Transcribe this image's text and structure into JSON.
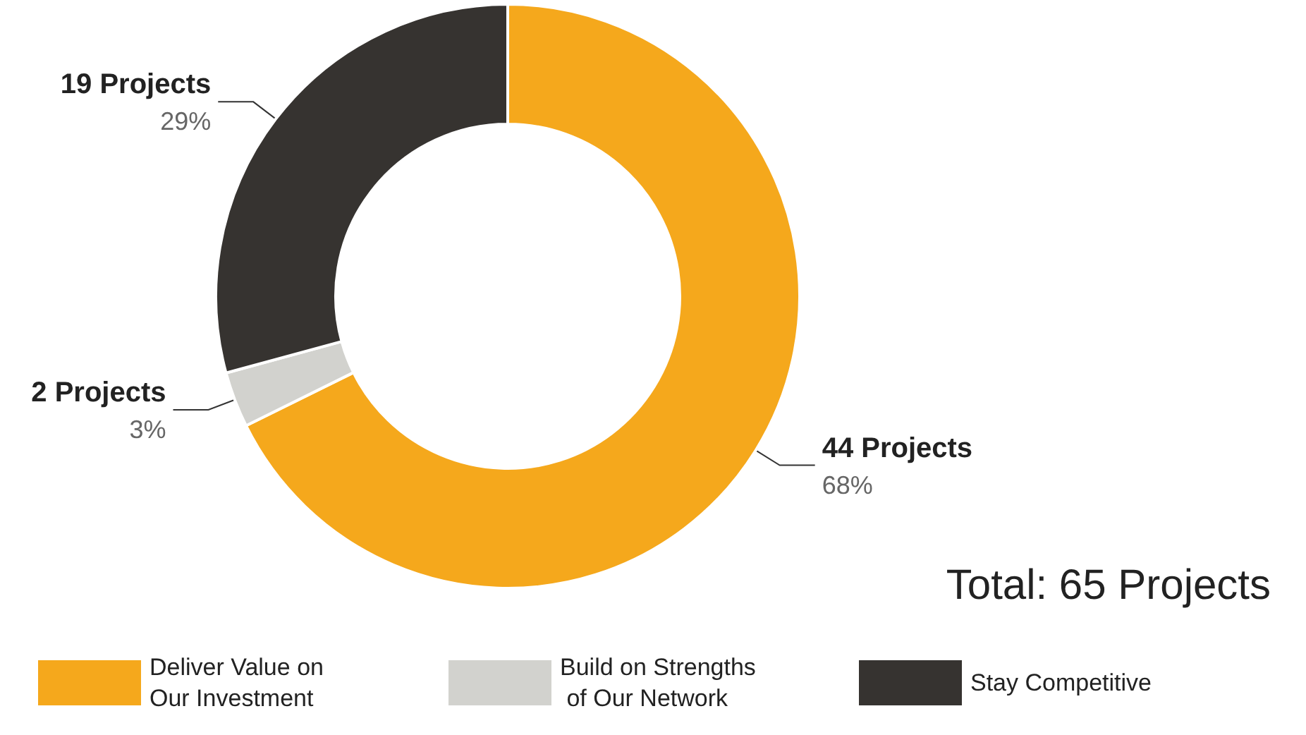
{
  "chart_data": {
    "type": "donut",
    "categories": [
      "Deliver Value on Our Investment",
      "Build on Strengths of Our Network",
      "Stay Competitive"
    ],
    "values": [
      44,
      2,
      19
    ],
    "colors": [
      "#f5a81c",
      "#d2d2ce",
      "#363330"
    ],
    "value_labels": [
      "44 Projects\n68%",
      "2 Projects\n3%",
      "19 Projects\n29%"
    ],
    "annotations": [
      "Total: 65 Projects"
    ],
    "legend": "bottom"
  }
}
